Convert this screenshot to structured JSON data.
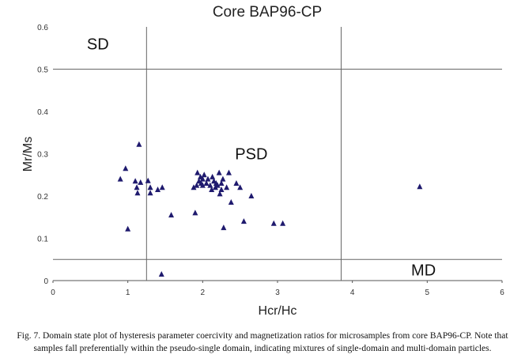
{
  "chart_data": {
    "type": "scatter",
    "title": "Core BAP96-CP",
    "xlabel": "Hcr/Hc",
    "ylabel": "Mr/Ms",
    "xlim": [
      0,
      6
    ],
    "ylim": [
      0,
      0.6
    ],
    "xticks": [
      "0",
      "1",
      "2",
      "3",
      "4",
      "5",
      "6"
    ],
    "yticks": [
      "0",
      "0.1",
      "0.2",
      "0.3",
      "0.4",
      "0.5",
      "0.6"
    ],
    "boundaries": {
      "horizontal": [
        0.5,
        0.05
      ],
      "vertical": [
        1.25,
        3.85
      ]
    },
    "region_labels": [
      "SD",
      "PSD",
      "MD"
    ],
    "marker": "triangle",
    "marker_color": "#1f1a6e",
    "points": [
      [
        0.9,
        0.24
      ],
      [
        0.97,
        0.265
      ],
      [
        1.0,
        0.122
      ],
      [
        1.1,
        0.235
      ],
      [
        1.12,
        0.22
      ],
      [
        1.13,
        0.207
      ],
      [
        1.15,
        0.322
      ],
      [
        1.17,
        0.232
      ],
      [
        1.27,
        0.236
      ],
      [
        1.3,
        0.22
      ],
      [
        1.3,
        0.207
      ],
      [
        1.4,
        0.215
      ],
      [
        1.46,
        0.22
      ],
      [
        1.45,
        0.015
      ],
      [
        1.58,
        0.155
      ],
      [
        1.88,
        0.22
      ],
      [
        1.9,
        0.16
      ],
      [
        1.92,
        0.225
      ],
      [
        1.93,
        0.255
      ],
      [
        1.95,
        0.235
      ],
      [
        1.97,
        0.245
      ],
      [
        1.98,
        0.23
      ],
      [
        2.0,
        0.225
      ],
      [
        2.0,
        0.24
      ],
      [
        2.02,
        0.25
      ],
      [
        2.05,
        0.23
      ],
      [
        2.07,
        0.24
      ],
      [
        2.1,
        0.225
      ],
      [
        2.12,
        0.215
      ],
      [
        2.13,
        0.245
      ],
      [
        2.15,
        0.235
      ],
      [
        2.17,
        0.22
      ],
      [
        2.18,
        0.23
      ],
      [
        2.2,
        0.225
      ],
      [
        2.22,
        0.255
      ],
      [
        2.23,
        0.205
      ],
      [
        2.25,
        0.215
      ],
      [
        2.25,
        0.23
      ],
      [
        2.27,
        0.24
      ],
      [
        2.28,
        0.125
      ],
      [
        2.32,
        0.22
      ],
      [
        2.35,
        0.255
      ],
      [
        2.38,
        0.185
      ],
      [
        2.45,
        0.23
      ],
      [
        2.5,
        0.22
      ],
      [
        2.55,
        0.14
      ],
      [
        2.65,
        0.2
      ],
      [
        2.95,
        0.135
      ],
      [
        3.07,
        0.135
      ],
      [
        4.9,
        0.222
      ]
    ]
  },
  "caption": {
    "line1": "Fig. 7. Domain state plot of hysteresis parameter coercivity and magnetization ratios for microsamples from core BAP96-CP. Note that",
    "line2": "samples fall preferentially within the pseudo-single domain, indicating mixtures of single-domain and multi-domain particles."
  }
}
